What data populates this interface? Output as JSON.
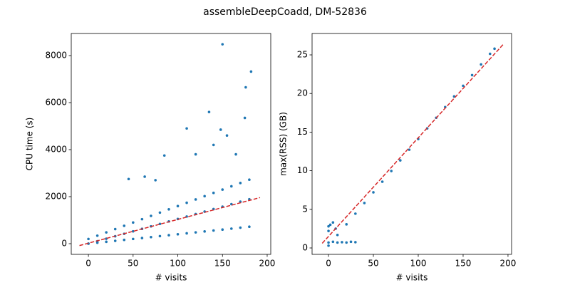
{
  "title": "assembleDeepCoadd, DM-52836",
  "chart_data": [
    {
      "type": "scatter",
      "xlabel": "# visits",
      "ylabel": "CPU time (s)",
      "xlim": [
        -19.2,
        204
      ],
      "ylim": [
        -455,
        8940
      ],
      "xticks": [
        0,
        50,
        100,
        150,
        200
      ],
      "yticks": [
        0,
        2000,
        4000,
        6000,
        8000
      ],
      "series": [
        {
          "color": "#1f77b4",
          "x": [
            0,
            10,
            20,
            30,
            40,
            50,
            60,
            70,
            80,
            90,
            100,
            110,
            120,
            130,
            140,
            150,
            160,
            170,
            180,
            0,
            10,
            20,
            30,
            40,
            50,
            60,
            70,
            80,
            90,
            100,
            110,
            120,
            130,
            140,
            150,
            160,
            170,
            180,
            0,
            10,
            20,
            30,
            40,
            50,
            60,
            70,
            80,
            90,
            100,
            110,
            120,
            130,
            140,
            150,
            160,
            170,
            180,
            150,
            182,
            176,
            175,
            135,
            110,
            148,
            155,
            85,
            120,
            140,
            165,
            63,
            45,
            75
          ],
          "values": [
            0,
            105,
            210,
            315,
            420,
            525,
            630,
            735,
            840,
            945,
            1050,
            1155,
            1260,
            1365,
            1470,
            1575,
            1680,
            1785,
            1890,
            0,
            40,
            80,
            120,
            160,
            200,
            240,
            280,
            320,
            360,
            400,
            440,
            480,
            520,
            560,
            600,
            640,
            680,
            720,
            200,
            340,
            480,
            620,
            760,
            900,
            1040,
            1180,
            1320,
            1460,
            1600,
            1740,
            1880,
            2020,
            2160,
            2300,
            2440,
            2580,
            2720,
            8480,
            7320,
            6650,
            5350,
            5600,
            4900,
            4850,
            4600,
            3750,
            3800,
            4200,
            3800,
            2850,
            2750,
            2700
          ]
        }
      ],
      "fit": {
        "color": "#d62728",
        "dashed": true,
        "x": [
          -10,
          192
        ],
        "values": [
          -80,
          1960
        ]
      }
    },
    {
      "type": "scatter",
      "xlabel": "# visits",
      "ylabel": "max(RSS) (GB)",
      "xlim": [
        -18.3,
        204
      ],
      "ylim": [
        -0.83,
        27.77
      ],
      "xticks": [
        0,
        50,
        100,
        150,
        200
      ],
      "yticks": [
        0,
        5,
        10,
        15,
        20,
        25
      ],
      "series": [
        {
          "color": "#1f77b4",
          "x": [
            0,
            10,
            20,
            30,
            40,
            50,
            60,
            70,
            80,
            90,
            100,
            110,
            120,
            130,
            140,
            150,
            160,
            170,
            180,
            185,
            0,
            5,
            10,
            15,
            20,
            25,
            30,
            0,
            2,
            5,
            8,
            0
          ],
          "values": [
            0.3,
            1.68,
            3.06,
            4.44,
            5.82,
            7.2,
            8.58,
            9.96,
            11.34,
            12.72,
            14.1,
            15.48,
            16.86,
            18.24,
            19.62,
            21,
            22.38,
            23.76,
            25.14,
            25.8,
            0.7,
            0.8,
            0.7,
            0.75,
            0.7,
            0.8,
            0.75,
            2.2,
            3.0,
            3.3,
            2.5,
            2.8
          ]
        }
      ],
      "fit": {
        "color": "#d62728",
        "dashed": true,
        "x": [
          -7,
          195
        ],
        "values": [
          0.6,
          26.4
        ]
      }
    }
  ]
}
